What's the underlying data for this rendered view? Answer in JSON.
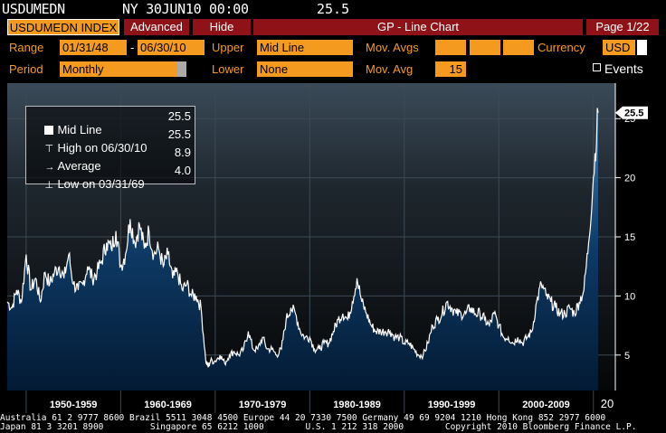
{
  "header": {
    "ticker": "USDUMEDN",
    "info": "NY 30JUN10 00:00",
    "value": "25.5"
  },
  "tabs": {
    "index": "USDUMEDN INDEX",
    "advanced": "Advanced",
    "hide": "Hide",
    "title": "GP - Line Chart",
    "page": "Page 1/22"
  },
  "controls": {
    "range_label": "Range",
    "range_start": "01/31/48",
    "range_sep": "-",
    "range_end": "06/30/10",
    "upper_label": "Upper",
    "upper_value": "Mid Line",
    "mov_avgs_label": "Mov. Avgs",
    "currency_label": "Currency",
    "currency_value": "USD",
    "period_label": "Period",
    "period_value": "Monthly",
    "lower_label": "Lower",
    "lower_value": "None",
    "mov_avg_label": "Mov. Avg",
    "mov_avg_value": "15",
    "events_label": "Events"
  },
  "legend": {
    "rows": [
      {
        "label": "Mid Line",
        "value": "25.5"
      },
      {
        "label": "High on 06/30/10",
        "value": "25.5"
      },
      {
        "label": "Average",
        "value": "8.9"
      },
      {
        "label": "Low on 03/31/69",
        "value": "4.0"
      }
    ]
  },
  "chart_data": {
    "type": "area",
    "y_ticks": [
      "5",
      "10",
      "15",
      "20",
      "25"
    ],
    "last_value_label": "25.5",
    "decades": [
      "1950-1959",
      "1960-1969",
      "1970-1979",
      "1980-1989",
      "1990-1999",
      "2000-2009"
    ],
    "partial_decade_label": "20",
    "ylim": [
      2,
      28
    ],
    "xlim": [
      1948.0,
      2010.6
    ],
    "series": [
      {
        "x": [
          1948.0,
          1948.5,
          1949.0,
          1949.5,
          1950.0,
          1950.5,
          1951.0,
          1951.5,
          1952.0,
          1952.5,
          1953.0,
          1953.5,
          1954.0,
          1954.5,
          1955.0,
          1955.5,
          1956.0,
          1956.5,
          1957.0,
          1957.5,
          1958.0,
          1958.5,
          1959.0,
          1959.5,
          1960.0,
          1960.5,
          1961.0,
          1961.5,
          1962.0,
          1962.5,
          1963.0,
          1963.5,
          1964.0,
          1964.5,
          1965.0,
          1965.5,
          1966.0,
          1966.5,
          1967.0,
          1967.5,
          1968.0,
          1968.5,
          1969.0,
          1969.25,
          1969.5,
          1970.0,
          1970.5,
          1971.0,
          1971.5,
          1972.0,
          1972.5,
          1973.0,
          1973.5,
          1974.0,
          1974.5,
          1975.0,
          1975.5,
          1976.0,
          1976.5,
          1977.0,
          1977.5,
          1978.0,
          1978.5,
          1979.0,
          1979.5,
          1980.0,
          1980.5,
          1981.0,
          1981.5,
          1982.0,
          1982.5,
          1983.0,
          1983.5,
          1984.0,
          1984.5,
          1985.0,
          1985.5,
          1986.0,
          1986.5,
          1987.0,
          1987.5,
          1988.0,
          1988.5,
          1989.0,
          1989.5,
          1990.0,
          1990.5,
          1991.0,
          1991.5,
          1992.0,
          1992.5,
          1993.0,
          1993.5,
          1994.0,
          1994.5,
          1995.0,
          1995.5,
          1996.0,
          1996.5,
          1997.0,
          1997.5,
          1998.0,
          1998.5,
          1999.0,
          1999.5,
          2000.0,
          2000.5,
          2001.0,
          2001.5,
          2002.0,
          2002.5,
          2003.0,
          2003.5,
          2004.0,
          2004.5,
          2005.0,
          2005.5,
          2006.0,
          2006.5,
          2007.0,
          2007.5,
          2008.0,
          2008.5,
          2009.0,
          2009.5,
          2010.0,
          2010.5
        ],
        "values": [
          9.5,
          9.0,
          10.5,
          9.5,
          13.5,
          10.5,
          11.5,
          9.5,
          12.0,
          11.0,
          12.0,
          12.5,
          11.5,
          13.5,
          11.0,
          10.5,
          11.0,
          12.5,
          11.5,
          12.0,
          13.0,
          14.5,
          14.0,
          15.5,
          12.5,
          13.5,
          16.5,
          14.5,
          16.0,
          14.0,
          15.5,
          13.5,
          14.0,
          12.5,
          13.5,
          11.5,
          12.0,
          10.5,
          11.0,
          10.0,
          10.0,
          9.0,
          4.5,
          4.0,
          4.5,
          4.5,
          5.0,
          4.3,
          5.0,
          5.3,
          5.0,
          5.5,
          7.0,
          5.5,
          5.5,
          6.5,
          5.5,
          5.5,
          5.0,
          5.5,
          8.0,
          9.0,
          8.5,
          7.0,
          6.5,
          6.5,
          5.5,
          5.5,
          6.0,
          6.0,
          7.0,
          8.0,
          8.5,
          8.0,
          9.5,
          11.5,
          9.5,
          8.5,
          7.5,
          7.0,
          7.0,
          7.0,
          7.0,
          6.5,
          6.5,
          6.0,
          6.0,
          5.5,
          5.0,
          5.0,
          6.0,
          7.5,
          8.0,
          8.5,
          9.5,
          9.0,
          8.5,
          8.5,
          8.5,
          9.0,
          8.5,
          8.5,
          8.0,
          7.5,
          8.5,
          7.5,
          6.5,
          6.5,
          6.0,
          6.5,
          6.0,
          6.5,
          7.0,
          9.5,
          11.0,
          10.0,
          9.5,
          9.0,
          8.5,
          8.5,
          9.0,
          8.5,
          9.5,
          10.5,
          14.5,
          20.0,
          25.5
        ]
      }
    ]
  }
}
